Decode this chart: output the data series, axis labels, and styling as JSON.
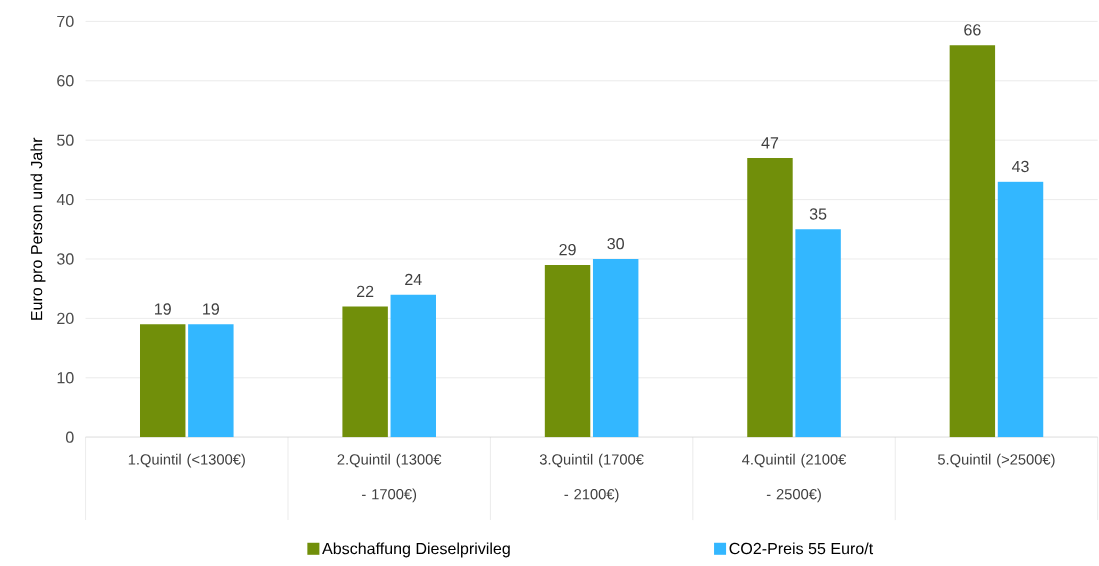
{
  "chart_data": {
    "type": "bar",
    "ylabel": "Euro pro Person und Jahr",
    "categories": [
      "1.Quintil (<1300€)",
      "2.Quintil (1300€ - 1700€)",
      "3.Quintil (1700€ - 2100€)",
      "4.Quintil (2100€ - 2500€)",
      "5.Quintil (>2500€)"
    ],
    "series": [
      {
        "name": "Abschaffung Dieselprivileg",
        "color": "#718f0a",
        "values": [
          19,
          22,
          29,
          47,
          66
        ]
      },
      {
        "name": "CO2-Preis 55 Euro/t",
        "color": "#33b7ff",
        "values": [
          19,
          24,
          30,
          35,
          43
        ]
      }
    ],
    "ylim": [
      0,
      70
    ],
    "yticks": [
      0,
      10,
      20,
      30,
      40,
      50,
      60,
      70
    ],
    "grid": "y",
    "legend": "bottom",
    "data_labels": true
  }
}
